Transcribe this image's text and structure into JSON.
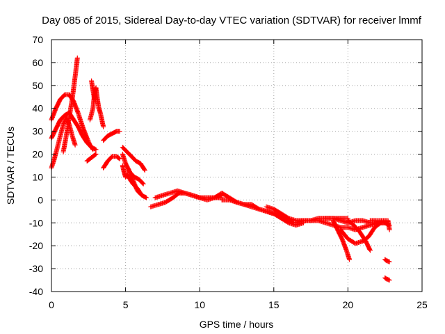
{
  "chart_data": {
    "type": "scatter",
    "title": "Day 085 of 2015, Sidereal Day-to-day VTEC variation (SDTVAR) for receiver lmmf",
    "xlabel": "GPS time / hours",
    "ylabel": "SDTVAR / TECUs",
    "xlim": [
      0,
      25
    ],
    "ylim": [
      -40,
      70
    ],
    "xticks": [
      0,
      5,
      10,
      15,
      20,
      25
    ],
    "yticks": [
      -40,
      -30,
      -20,
      -10,
      0,
      10,
      20,
      30,
      40,
      50,
      60,
      70
    ],
    "grid": true,
    "marker": "+",
    "series": [
      {
        "name": "SDTVAR",
        "color": "#ff0000",
        "tracks": [
          [
            [
              0.0,
              35
            ],
            [
              0.3,
              40
            ],
            [
              0.6,
              44
            ],
            [
              0.9,
              46
            ],
            [
              1.2,
              46
            ],
            [
              1.5,
              43
            ],
            [
              1.8,
              38
            ],
            [
              2.1,
              32
            ],
            [
              2.4,
              27
            ],
            [
              2.6,
              24
            ],
            [
              2.8,
              22
            ]
          ],
          [
            [
              0.0,
              27
            ],
            [
              0.3,
              31
            ],
            [
              0.6,
              35
            ],
            [
              0.9,
              37
            ],
            [
              1.2,
              38
            ],
            [
              1.5,
              35
            ],
            [
              1.8,
              32
            ],
            [
              2.1,
              28
            ],
            [
              2.4,
              25
            ],
            [
              2.7,
              23
            ],
            [
              3.0,
              22
            ]
          ],
          [
            [
              0.0,
              14
            ],
            [
              0.2,
              18
            ],
            [
              0.4,
              23
            ],
            [
              0.6,
              28
            ],
            [
              0.8,
              33
            ],
            [
              1.0,
              36
            ],
            [
              1.2,
              33
            ],
            [
              1.4,
              28
            ],
            [
              1.6,
              24
            ]
          ],
          [
            [
              0.8,
              21
            ],
            [
              1.0,
              28
            ],
            [
              1.2,
              36
            ],
            [
              1.4,
              44
            ],
            [
              1.6,
              54
            ],
            [
              1.75,
              62
            ]
          ],
          [
            [
              2.4,
              17
            ],
            [
              2.6,
              18
            ],
            [
              2.8,
              19
            ],
            [
              3.0,
              20
            ]
          ],
          [
            [
              2.6,
              35
            ],
            [
              2.8,
              40
            ],
            [
              2.9,
              46
            ],
            [
              3.0,
              49
            ],
            [
              3.1,
              44
            ],
            [
              3.2,
              40
            ],
            [
              3.3,
              38
            ],
            [
              3.5,
              32
            ]
          ],
          [
            [
              2.7,
              52
            ],
            [
              2.8,
              48
            ],
            [
              2.9,
              44
            ]
          ],
          [
            [
              3.5,
              14
            ],
            [
              3.8,
              17
            ],
            [
              4.1,
              19
            ],
            [
              4.4,
              19
            ],
            [
              4.6,
              18
            ]
          ],
          [
            [
              3.5,
              26
            ],
            [
              3.8,
              28
            ],
            [
              4.1,
              29
            ],
            [
              4.4,
              30
            ],
            [
              4.6,
              30
            ]
          ],
          [
            [
              4.8,
              23
            ],
            [
              5.1,
              21
            ],
            [
              5.4,
              19
            ],
            [
              5.7,
              17
            ],
            [
              6.0,
              16
            ],
            [
              6.3,
              13
            ]
          ],
          [
            [
              4.8,
              20
            ],
            [
              5.0,
              16
            ],
            [
              5.3,
              12
            ],
            [
              5.6,
              10
            ],
            [
              5.9,
              9
            ],
            [
              6.2,
              7
            ]
          ],
          [
            [
              4.8,
              15
            ],
            [
              4.9,
              12
            ],
            [
              5.0,
              10
            ],
            [
              5.1,
              11
            ],
            [
              5.3,
              9
            ],
            [
              5.5,
              7
            ],
            [
              5.8,
              5
            ],
            [
              6.0,
              3
            ]
          ],
          [
            [
              5.2,
              13
            ],
            [
              5.4,
              10
            ],
            [
              5.6,
              7
            ],
            [
              5.8,
              4
            ],
            [
              6.1,
              2
            ],
            [
              6.4,
              1
            ]
          ],
          [
            [
              6.7,
              -3
            ],
            [
              7.2,
              -2
            ],
            [
              7.7,
              -1
            ],
            [
              8.2,
              1
            ],
            [
              8.6,
              3
            ],
            [
              9.0,
              3
            ],
            [
              9.5,
              2
            ],
            [
              10.0,
              1
            ],
            [
              10.5,
              1
            ],
            [
              11.0,
              1
            ],
            [
              11.5,
              1
            ]
          ],
          [
            [
              7.0,
              1
            ],
            [
              7.5,
              2
            ],
            [
              8.0,
              3
            ],
            [
              8.5,
              4
            ],
            [
              9.0,
              3
            ],
            [
              9.5,
              2
            ],
            [
              10.0,
              1
            ],
            [
              10.5,
              0
            ],
            [
              11.0,
              1
            ],
            [
              11.5,
              2
            ]
          ],
          [
            [
              11.0,
              1
            ],
            [
              11.5,
              3
            ],
            [
              12.0,
              1
            ],
            [
              12.5,
              -1
            ],
            [
              13.0,
              -2
            ],
            [
              13.5,
              -2
            ],
            [
              14.0,
              -4
            ],
            [
              14.5,
              -5
            ],
            [
              15.0,
              -6
            ],
            [
              15.5,
              -7
            ],
            [
              16.0,
              -9
            ],
            [
              16.3,
              -10
            ]
          ],
          [
            [
              11.5,
              0
            ],
            [
              12.0,
              0
            ],
            [
              12.5,
              -1
            ],
            [
              13.0,
              -2
            ],
            [
              13.5,
              -3
            ],
            [
              14.0,
              -4
            ],
            [
              14.5,
              -5
            ],
            [
              15.0,
              -6
            ],
            [
              15.5,
              -8
            ],
            [
              16.0,
              -10
            ],
            [
              16.5,
              -11
            ],
            [
              17.0,
              -10
            ]
          ],
          [
            [
              14.5,
              -3
            ],
            [
              15.0,
              -4
            ],
            [
              15.5,
              -6
            ],
            [
              16.0,
              -8
            ],
            [
              16.5,
              -9
            ],
            [
              17.0,
              -9
            ],
            [
              17.5,
              -9
            ],
            [
              18.0,
              -8
            ],
            [
              18.5,
              -8
            ],
            [
              19.0,
              -8
            ],
            [
              19.5,
              -8
            ],
            [
              20.0,
              -8
            ]
          ],
          [
            [
              16.5,
              -10
            ],
            [
              17.0,
              -9
            ],
            [
              17.5,
              -9
            ],
            [
              18.0,
              -9
            ],
            [
              18.5,
              -10
            ],
            [
              19.0,
              -11
            ],
            [
              19.5,
              -12
            ],
            [
              20.0,
              -12
            ],
            [
              20.5,
              -13
            ],
            [
              21.0,
              -12
            ],
            [
              21.5,
              -11
            ],
            [
              22.0,
              -10
            ],
            [
              22.6,
              -10
            ]
          ],
          [
            [
              18.5,
              -8
            ],
            [
              19.0,
              -8
            ],
            [
              19.5,
              -9
            ],
            [
              20.0,
              -10
            ],
            [
              20.5,
              -9
            ],
            [
              21.0,
              -9
            ],
            [
              21.5,
              -10
            ],
            [
              22.0,
              -10
            ],
            [
              22.5,
              -10
            ],
            [
              22.8,
              -11
            ]
          ],
          [
            [
              19.0,
              -9
            ],
            [
              19.3,
              -13
            ],
            [
              19.6,
              -17
            ],
            [
              19.9,
              -22
            ],
            [
              20.1,
              -26
            ]
          ],
          [
            [
              19.5,
              -13
            ],
            [
              20.0,
              -17
            ],
            [
              20.5,
              -19
            ],
            [
              21.0,
              -18
            ],
            [
              21.4,
              -16
            ],
            [
              21.8,
              -12
            ],
            [
              22.2,
              -10
            ]
          ],
          [
            [
              20.0,
              -9
            ],
            [
              20.4,
              -11
            ],
            [
              20.8,
              -14
            ],
            [
              21.2,
              -18
            ],
            [
              21.5,
              -22
            ]
          ],
          [
            [
              21.5,
              -9
            ],
            [
              21.8,
              -9
            ],
            [
              22.1,
              -9
            ],
            [
              22.4,
              -9
            ],
            [
              22.7,
              -9
            ],
            [
              22.8,
              -13
            ]
          ],
          [
            [
              22.5,
              -26
            ],
            [
              22.6,
              -26.5
            ],
            [
              22.8,
              -27
            ]
          ],
          [
            [
              22.5,
              -34
            ],
            [
              22.6,
              -34.5
            ],
            [
              22.8,
              -35
            ]
          ]
        ]
      }
    ]
  }
}
